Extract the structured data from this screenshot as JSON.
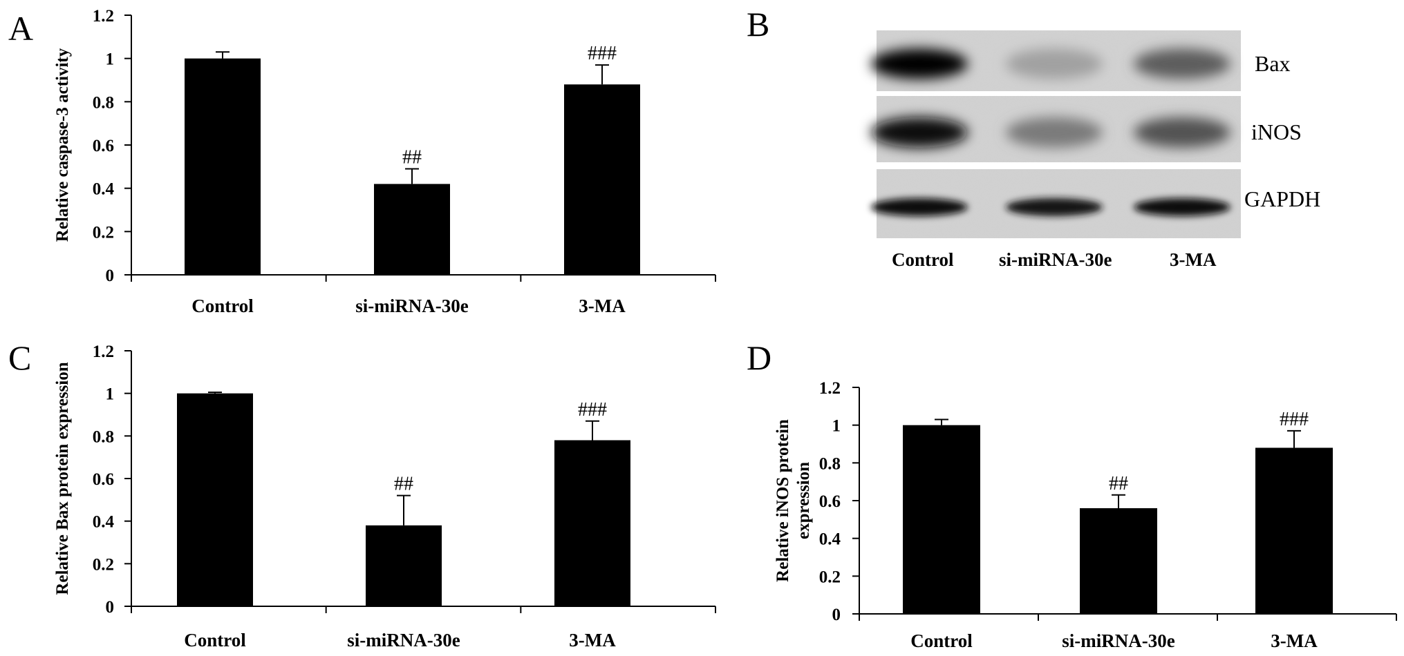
{
  "panels": {
    "A": "A",
    "B": "B",
    "C": "C",
    "D": "D"
  },
  "chart_data": [
    {
      "panel": "A",
      "type": "bar",
      "categories": [
        "Control",
        "si-miRNA-30e",
        "3-MA"
      ],
      "values": [
        1.0,
        0.42,
        0.88
      ],
      "errors": [
        0.03,
        0.07,
        0.09
      ],
      "annotations": [
        "",
        "##",
        "###"
      ],
      "ylabel": "Relative caspase-3 activity",
      "ylim": [
        0,
        1.2
      ],
      "yticks": [
        "0",
        "0.2",
        "0.4",
        "0.6",
        "0.8",
        "1",
        "1.2"
      ],
      "bar_color": "#000000",
      "grid": false
    },
    {
      "panel": "C",
      "type": "bar",
      "categories": [
        "Control",
        "si-miRNA-30e",
        "3-MA"
      ],
      "values": [
        1.0,
        0.38,
        0.78
      ],
      "errors": [
        0.005,
        0.14,
        0.09
      ],
      "annotations": [
        "",
        "##",
        "###"
      ],
      "ylabel": "Relative Bax protein expression",
      "ylim": [
        0,
        1.2
      ],
      "yticks": [
        "0",
        "0.2",
        "0.4",
        "0.6",
        "0.8",
        "1",
        "1.2"
      ],
      "bar_color": "#000000",
      "grid": false
    },
    {
      "panel": "D",
      "type": "bar",
      "categories": [
        "Control",
        "si-miRNA-30e",
        "3-MA"
      ],
      "values": [
        1.0,
        0.56,
        0.88
      ],
      "errors": [
        0.03,
        0.07,
        0.09
      ],
      "annotations": [
        "",
        "##",
        "###"
      ],
      "ylabel": [
        "Relative iNOS protein",
        "expression"
      ],
      "ylim": [
        0,
        1.2
      ],
      "yticks": [
        "0",
        "0.2",
        "0.4",
        "0.6",
        "0.8",
        "1",
        "1.2"
      ],
      "bar_color": "#000000",
      "grid": false
    }
  ],
  "blot": {
    "rows": [
      "Bax",
      "iNOS",
      "GAPDH"
    ],
    "lanes": [
      "Control",
      "si-miRNA-30e",
      "3-MA"
    ],
    "intensity": [
      [
        1.0,
        0.2,
        0.55
      ],
      [
        0.95,
        0.4,
        0.6
      ],
      [
        0.95,
        0.9,
        0.95
      ]
    ]
  }
}
